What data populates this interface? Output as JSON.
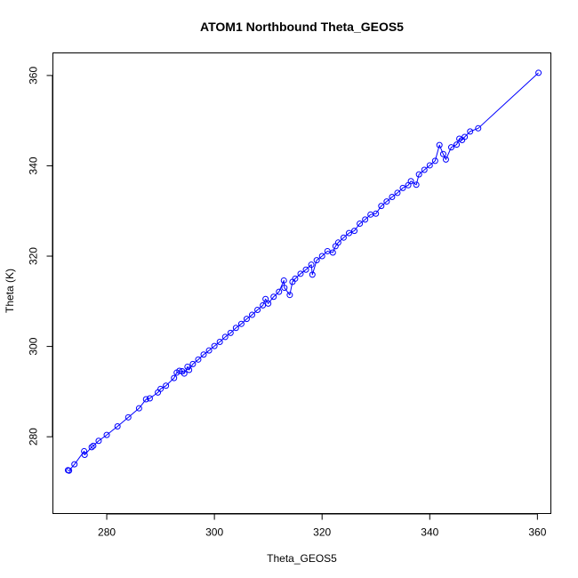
{
  "chart_data": {
    "type": "scatter",
    "title": "ATOM1 Northbound Theta_GEOS5",
    "xlabel": "Theta_GEOS5",
    "ylabel": "Theta (K)",
    "xlim": [
      270.0,
      362.5
    ],
    "ylim": [
      263.0,
      365.0
    ],
    "xticks": [
      "280",
      "300",
      "320",
      "340",
      "360"
    ],
    "yticks": [
      "280",
      "300",
      "320",
      "340",
      "360"
    ],
    "grid": false,
    "legend": "none",
    "series_color": "#0000ff",
    "series": [
      {
        "style": "points-and-lines",
        "points": [
          [
            272.8,
            272.6
          ],
          [
            273.0,
            272.5
          ],
          [
            274.0,
            273.9
          ],
          [
            275.8,
            276.8
          ],
          [
            275.9,
            276.0
          ],
          [
            277.2,
            277.7
          ],
          [
            277.5,
            278.0
          ],
          [
            278.5,
            279.1
          ],
          [
            280.0,
            280.4
          ],
          [
            282.0,
            282.3
          ],
          [
            284.0,
            284.3
          ],
          [
            286.0,
            286.3
          ],
          [
            287.3,
            288.3
          ],
          [
            288.0,
            288.5
          ],
          [
            289.5,
            289.8
          ],
          [
            290.0,
            290.6
          ],
          [
            291.0,
            291.3
          ],
          [
            292.5,
            293.0
          ],
          [
            293.0,
            294.2
          ],
          [
            293.5,
            294.6
          ],
          [
            294.0,
            294.5
          ],
          [
            294.4,
            294.0
          ],
          [
            295.0,
            295.5
          ],
          [
            295.3,
            294.8
          ],
          [
            296.0,
            296.1
          ],
          [
            297.0,
            297.1
          ],
          [
            298.0,
            298.2
          ],
          [
            299.0,
            299.1
          ],
          [
            300.0,
            300.1
          ],
          [
            301.0,
            301.0
          ],
          [
            302.0,
            302.1
          ],
          [
            303.0,
            303.0
          ],
          [
            304.0,
            304.1
          ],
          [
            305.0,
            305.0
          ],
          [
            306.0,
            306.1
          ],
          [
            307.0,
            307.0
          ],
          [
            308.0,
            308.1
          ],
          [
            309.0,
            309.1
          ],
          [
            309.5,
            310.5
          ],
          [
            310.0,
            309.5
          ],
          [
            311.0,
            311.0
          ],
          [
            312.0,
            312.1
          ],
          [
            312.9,
            314.6
          ],
          [
            313.0,
            313.0
          ],
          [
            314.0,
            311.4
          ],
          [
            314.5,
            314.3
          ],
          [
            315.0,
            315.0
          ],
          [
            316.0,
            316.1
          ],
          [
            317.0,
            317.0
          ],
          [
            318.0,
            318.1
          ],
          [
            318.2,
            315.9
          ],
          [
            319.0,
            319.1
          ],
          [
            320.0,
            320.0
          ],
          [
            321.0,
            321.1
          ],
          [
            322.0,
            320.8
          ],
          [
            322.5,
            322.2
          ],
          [
            323.0,
            323.0
          ],
          [
            324.0,
            324.1
          ],
          [
            325.0,
            325.1
          ],
          [
            326.0,
            325.6
          ],
          [
            327.0,
            327.2
          ],
          [
            328.0,
            328.1
          ],
          [
            329.0,
            329.2
          ],
          [
            330.0,
            329.4
          ],
          [
            331.0,
            331.1
          ],
          [
            332.0,
            332.1
          ],
          [
            333.0,
            333.1
          ],
          [
            334.0,
            334.0
          ],
          [
            335.0,
            335.1
          ],
          [
            336.0,
            335.7
          ],
          [
            336.5,
            336.6
          ],
          [
            337.5,
            335.8
          ],
          [
            338.0,
            338.1
          ],
          [
            339.0,
            339.1
          ],
          [
            340.0,
            340.1
          ],
          [
            341.0,
            341.1
          ],
          [
            341.8,
            344.6
          ],
          [
            342.5,
            342.6
          ],
          [
            343.0,
            341.4
          ],
          [
            344.0,
            344.1
          ],
          [
            345.0,
            344.7
          ],
          [
            345.5,
            346.0
          ],
          [
            346.0,
            345.7
          ],
          [
            346.5,
            346.4
          ],
          [
            347.5,
            347.6
          ],
          [
            349.0,
            348.3
          ],
          [
            360.2,
            360.6
          ]
        ]
      }
    ]
  }
}
